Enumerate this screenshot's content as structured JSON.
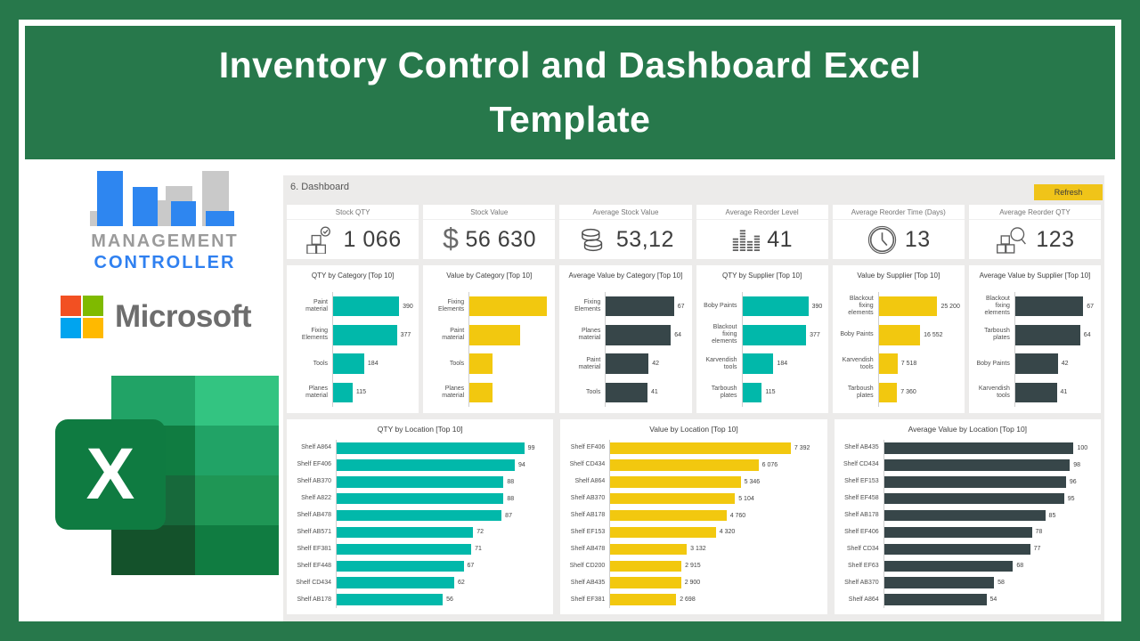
{
  "header": {
    "title_line1": "Inventory Control and Dashboard Excel",
    "title_line2": "Template"
  },
  "branding": {
    "management_controller": {
      "line1": "MANAGEMENT",
      "line2": "CONTROLLER"
    },
    "microsoft": {
      "wordmark": "Microsoft",
      "square_colors": [
        "#F25022",
        "#7FBA00",
        "#00A4EF",
        "#FFB900"
      ]
    },
    "excel": {
      "letter": "X",
      "brand_green": "#107C41"
    }
  },
  "dashboard": {
    "sheet_label": "6. Dashboard",
    "refresh_button": "Refresh",
    "colors": {
      "teal": "#01B8AA",
      "yellow": "#F2C80F",
      "dark": "#374649",
      "frame_green": "#27784B",
      "refresh_yellow": "#F0C419",
      "panel_bg": "#ECEBEA"
    },
    "kpis": [
      {
        "title": "Stock QTY",
        "value": "1 066",
        "icon": "boxes-check-icon"
      },
      {
        "title": "Stock Value",
        "value": "56 630",
        "icon": "dollar-icon"
      },
      {
        "title": "Average Stock Value",
        "value": "53,12",
        "icon": "coins-icon"
      },
      {
        "title": "Average Reorder Level",
        "value": "41",
        "icon": "equalizer-icon"
      },
      {
        "title": "Average Reorder Time (Days)",
        "value": "13",
        "icon": "clock-icon"
      },
      {
        "title": "Average Reorder QTY",
        "value": "123",
        "icon": "search-boxes-icon"
      }
    ]
  },
  "chart_data": [
    {
      "type": "bar",
      "orientation": "horizontal",
      "panel": "mid",
      "title": "QTY by Category [Top 10]",
      "series_color": "teal",
      "categories": [
        "Paint material",
        "Fixing Elements",
        "Tools",
        "Planes material"
      ],
      "values": [
        390,
        377,
        184,
        115
      ],
      "value_labels": [
        "390",
        "377",
        "184",
        "115"
      ],
      "axis_max": 480
    },
    {
      "type": "bar",
      "orientation": "horizontal",
      "panel": "mid",
      "title": "Value by Category [Top 10]",
      "series_color": "yellow",
      "categories": [
        "Fixing Elements",
        "Paint material",
        "Tools",
        "Planes material"
      ],
      "values": [
        25200,
        16552,
        7518,
        7360
      ],
      "value_labels": null,
      "axis_max": 26500
    },
    {
      "type": "bar",
      "orientation": "horizontal",
      "panel": "mid",
      "title": "Average Value by Category [Top 10]",
      "series_color": "dark",
      "categories": [
        "Fixing Elements",
        "Planes material",
        "Paint material",
        "Tools"
      ],
      "values": [
        67,
        64,
        42,
        41
      ],
      "value_labels": [
        "67",
        "64",
        "42",
        "41"
      ],
      "axis_max": 80
    },
    {
      "type": "bar",
      "orientation": "horizontal",
      "panel": "mid",
      "title": "QTY by Supplier [Top 10]",
      "series_color": "teal",
      "categories": [
        "Boby Paints",
        "Blackout fixing elements",
        "Karvendish tools",
        "Tarboush plates"
      ],
      "values": [
        390,
        377,
        184,
        115
      ],
      "value_labels": [
        "390",
        "377",
        "184",
        "115"
      ],
      "axis_max": 480
    },
    {
      "type": "bar",
      "orientation": "horizontal",
      "panel": "mid",
      "title": "Value by Supplier [Top 10]",
      "series_color": "yellow",
      "categories": [
        "Blackout fixing elements",
        "Boby Paints",
        "Karvendish tools",
        "Tarboush plates"
      ],
      "values": [
        25200,
        16552,
        7518,
        7360
      ],
      "value_labels": [
        "25 200",
        "16 552",
        "7 518",
        "7 360"
      ],
      "axis_max": 32500
    },
    {
      "type": "bar",
      "orientation": "horizontal",
      "panel": "mid",
      "title": "Average Value by Supplier [Top 10]",
      "series_color": "dark",
      "categories": [
        "Blackout fixing elements",
        "Tarboush plates",
        "Boby Paints",
        "Karvendish tools"
      ],
      "values": [
        67,
        64,
        42,
        41
      ],
      "value_labels": [
        "67",
        "64",
        "42",
        "41"
      ],
      "axis_max": 80
    },
    {
      "type": "bar",
      "orientation": "horizontal",
      "panel": "bottom",
      "title": "QTY by Location [Top 10]",
      "series_color": "teal",
      "categories": [
        "Shelf A864",
        "Shelf EF406",
        "Shelf AB370",
        "Shelf A822",
        "Shelf AB478",
        "Shelf AB571",
        "Shelf EF381",
        "Shelf EF448",
        "Shelf CD434",
        "Shelf AB178"
      ],
      "values": [
        99,
        94,
        88,
        88,
        87,
        72,
        71,
        67,
        62,
        56
      ],
      "value_labels": [
        "99",
        "94",
        "88",
        "88",
        "87",
        "72",
        "71",
        "67",
        "62",
        "56"
      ],
      "axis_max": 112
    },
    {
      "type": "bar",
      "orientation": "horizontal",
      "panel": "bottom",
      "title": "Value by Location [Top 10]",
      "series_color": "yellow",
      "categories": [
        "Shelf EF406",
        "Shelf CD434",
        "Shelf A864",
        "Shelf AB370",
        "Shelf AB178",
        "Shelf EF153",
        "Shelf AB478",
        "Shelf CD200",
        "Shelf AB435",
        "Shelf EF381"
      ],
      "values": [
        7392,
        6076,
        5346,
        5104,
        4760,
        4320,
        3132,
        2915,
        2900,
        2698
      ],
      "value_labels": [
        "7 392",
        "6 076",
        "5 346",
        "5 104",
        "4 760",
        "4 320",
        "3 132",
        "2 915",
        "2 900",
        "2 698"
      ],
      "axis_max": 8700
    },
    {
      "type": "bar",
      "orientation": "horizontal",
      "panel": "bottom",
      "title": "Average Value by Location [Top 10]",
      "series_color": "dark",
      "categories": [
        "Shelf AB435",
        "Shelf CD434",
        "Shelf EF153",
        "Shelf EF458",
        "Shelf AB178",
        "Shelf EF406",
        "Shelf CD34",
        "Shelf EF63",
        "Shelf AB370",
        "Shelf A864"
      ],
      "values": [
        100,
        98,
        96,
        95,
        85,
        78,
        77,
        68,
        58,
        54
      ],
      "value_labels": [
        "100",
        "98",
        "96",
        "95",
        "85",
        "78",
        "77",
        "68",
        "58",
        "54"
      ],
      "axis_max": 112
    }
  ]
}
